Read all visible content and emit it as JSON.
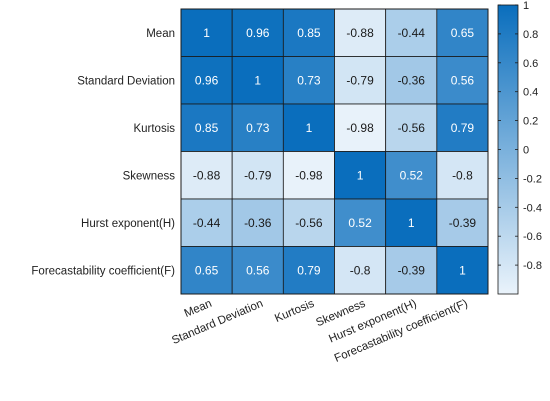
{
  "chart_data": {
    "type": "heatmap",
    "title": "",
    "xlabel": "",
    "ylabel": "",
    "row_labels": [
      "Mean",
      "Standard Deviation",
      "Kurtosis",
      "Skewness",
      "Hurst exponent(H)",
      "Forecastability coefficient(F)"
    ],
    "col_labels": [
      "Mean",
      "Standard Deviation",
      "Kurtosis",
      "Skewness",
      "Hurst exponent(H)",
      "Forecastability coefficient(F)"
    ],
    "values": [
      [
        1,
        0.96,
        0.85,
        -0.88,
        -0.44,
        0.65
      ],
      [
        0.96,
        1,
        0.73,
        -0.79,
        -0.36,
        0.56
      ],
      [
        0.85,
        0.73,
        1,
        -0.98,
        -0.56,
        0.79
      ],
      [
        -0.88,
        -0.79,
        -0.98,
        1,
        0.52,
        -0.8
      ],
      [
        -0.44,
        -0.36,
        -0.56,
        0.52,
        1,
        -0.39
      ],
      [
        0.65,
        0.56,
        0.79,
        -0.8,
        -0.39,
        1
      ]
    ],
    "cell_labels": [
      [
        "1",
        "0.96",
        "0.85",
        "-0.88",
        "-0.44",
        "0.65"
      ],
      [
        "0.96",
        "1",
        "0.73",
        "-0.79",
        "-0.36",
        "0.56"
      ],
      [
        "0.85",
        "0.73",
        "1",
        "-0.98",
        "-0.56",
        "0.79"
      ],
      [
        "-0.88",
        "-0.79",
        "-0.98",
        "1",
        "0.52",
        "-0.8"
      ],
      [
        "-0.44",
        "-0.36",
        "-0.56",
        "0.52",
        "1",
        "-0.39"
      ],
      [
        "0.65",
        "0.56",
        "0.79",
        "-0.8",
        "-0.39",
        "1"
      ]
    ],
    "color_range": [
      -1,
      1
    ],
    "colormap": {
      "low": "#eaf3fb",
      "high": "#0a6ebd"
    },
    "colorbar": {
      "ticks": [
        1,
        0.8,
        0.6,
        0.4,
        0.2,
        0,
        -0.2,
        -0.4,
        -0.6,
        -0.8
      ],
      "tick_labels": [
        "1",
        "0.8",
        "0.6",
        "0.4",
        "0.2",
        "0",
        "-0.2",
        "-0.4",
        "-0.6",
        "-0.8"
      ],
      "placement": "right"
    },
    "grid": true,
    "legend": "none"
  }
}
